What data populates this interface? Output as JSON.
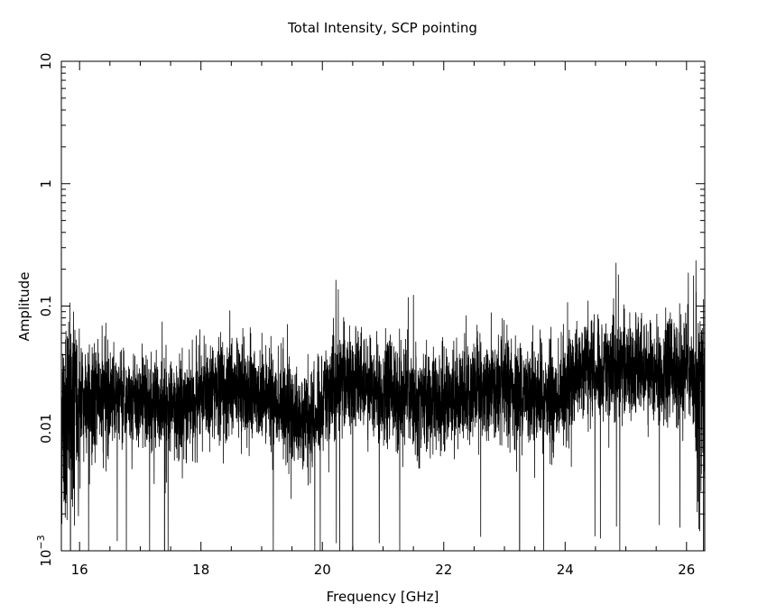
{
  "chart_data": {
    "type": "line",
    "title": "Total Intensity, SCP pointing",
    "xlabel": "Frequency [GHz]",
    "ylabel": "Amplitude",
    "xlim": [
      15.7,
      26.3
    ],
    "ylim": [
      0.001,
      10
    ],
    "yscale": "log",
    "grid": false,
    "legend": "none",
    "x_ticks": [
      "16",
      "18",
      "20",
      "22",
      "24",
      "26"
    ],
    "y_ticks": [
      {
        "base": "10",
        "exp": "−3"
      },
      {
        "base": "0.01",
        "exp": ""
      },
      {
        "base": "0.1",
        "exp": ""
      },
      {
        "base": "1",
        "exp": ""
      },
      {
        "base": "10",
        "exp": ""
      }
    ],
    "series": [
      {
        "color": "#000000",
        "x": [
          15.7,
          16.0,
          16.5,
          17.0,
          17.5,
          18.0,
          18.5,
          19.0,
          19.5,
          19.8,
          20.0,
          20.3,
          20.8,
          21.3,
          21.8,
          22.3,
          22.8,
          23.3,
          23.8,
          24.0,
          24.2,
          24.7,
          25.2,
          25.7,
          26.0,
          26.2,
          26.3
        ],
        "y_median": [
          0.012,
          0.016,
          0.018,
          0.017,
          0.014,
          0.017,
          0.022,
          0.019,
          0.013,
          0.011,
          0.018,
          0.025,
          0.023,
          0.018,
          0.016,
          0.019,
          0.022,
          0.02,
          0.017,
          0.019,
          0.03,
          0.032,
          0.031,
          0.03,
          0.029,
          0.022,
          0.016
        ]
      }
    ]
  }
}
